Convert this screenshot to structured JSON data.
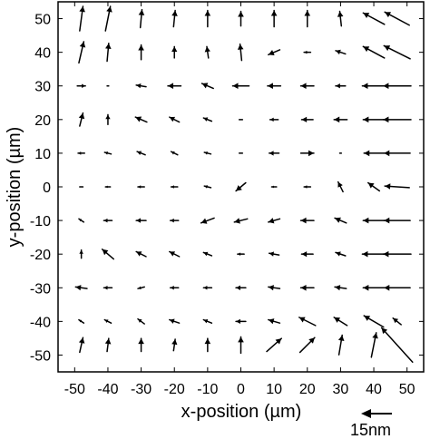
{
  "chart_data": {
    "type": "quiver",
    "xlabel": "x-position (µm)",
    "ylabel": "y-position (µm)",
    "xlim": [
      -55,
      55
    ],
    "ylim": [
      -55,
      55
    ],
    "xticks": [
      -50,
      -40,
      -30,
      -20,
      -10,
      0,
      10,
      20,
      30,
      40,
      50
    ],
    "yticks": [
      50,
      40,
      30,
      20,
      10,
      0,
      -10,
      -20,
      -30,
      -40,
      -50
    ],
    "grid": false,
    "scale_bar": {
      "label": "15nm",
      "magnitude_nm": 15,
      "direction": "left"
    },
    "vectors": [
      {
        "x": -48,
        "y": 50,
        "u": 0.4,
        "v": 3.0
      },
      {
        "x": -40,
        "y": 50,
        "u": 0.6,
        "v": 3.0
      },
      {
        "x": -30,
        "y": 50,
        "u": 0.2,
        "v": 2.2
      },
      {
        "x": -20,
        "y": 50,
        "u": 0.2,
        "v": 2.0
      },
      {
        "x": -10,
        "y": 50,
        "u": 0.0,
        "v": 2.0
      },
      {
        "x": 0,
        "y": 50,
        "u": 0.0,
        "v": 1.8
      },
      {
        "x": 10,
        "y": 50,
        "u": 0.0,
        "v": 2.0
      },
      {
        "x": 20,
        "y": 50,
        "u": 0.0,
        "v": 2.0
      },
      {
        "x": 30,
        "y": 50,
        "u": -0.2,
        "v": 1.8
      },
      {
        "x": 40,
        "y": 50,
        "u": -2.6,
        "v": 1.4
      },
      {
        "x": 47,
        "y": 50,
        "u": -3.0,
        "v": 1.6
      },
      {
        "x": -48,
        "y": 40,
        "u": 0.6,
        "v": 2.6
      },
      {
        "x": -40,
        "y": 40,
        "u": 0.2,
        "v": 2.2
      },
      {
        "x": -30,
        "y": 40,
        "u": 0.0,
        "v": 1.8
      },
      {
        "x": -20,
        "y": 40,
        "u": 0.0,
        "v": 1.4
      },
      {
        "x": -10,
        "y": 40,
        "u": -0.2,
        "v": 1.4
      },
      {
        "x": 0,
        "y": 40,
        "u": -0.2,
        "v": 2.0
      },
      {
        "x": 10,
        "y": 40,
        "u": -1.4,
        "v": -0.6
      },
      {
        "x": 20,
        "y": 40,
        "u": -0.8,
        "v": 0.0
      },
      {
        "x": 30,
        "y": 40,
        "u": -1.2,
        "v": 0.4
      },
      {
        "x": 40,
        "y": 40,
        "u": -2.6,
        "v": 1.4
      },
      {
        "x": 47,
        "y": 40,
        "u": -3.2,
        "v": 1.6
      },
      {
        "x": -48,
        "y": 30,
        "u": 1.0,
        "v": 0.0
      },
      {
        "x": -40,
        "y": 30,
        "u": -0.2,
        "v": 0.0
      },
      {
        "x": -30,
        "y": 30,
        "u": -1.2,
        "v": 0.2
      },
      {
        "x": -20,
        "y": 30,
        "u": -1.6,
        "v": 0.0
      },
      {
        "x": -10,
        "y": 30,
        "u": -1.4,
        "v": 0.6
      },
      {
        "x": 0,
        "y": 30,
        "u": -2.0,
        "v": 0.0
      },
      {
        "x": 10,
        "y": 30,
        "u": -1.6,
        "v": 0.0
      },
      {
        "x": 20,
        "y": 30,
        "u": -1.6,
        "v": 0.0
      },
      {
        "x": 30,
        "y": 30,
        "u": -1.2,
        "v": 0.0
      },
      {
        "x": 40,
        "y": 30,
        "u": -2.8,
        "v": 0.0
      },
      {
        "x": 47,
        "y": 30,
        "u": -3.4,
        "v": 0.0
      },
      {
        "x": -48,
        "y": 20,
        "u": 0.4,
        "v": 1.6
      },
      {
        "x": -40,
        "y": 20,
        "u": 0.0,
        "v": 1.2
      },
      {
        "x": -30,
        "y": 20,
        "u": -1.4,
        "v": 0.6
      },
      {
        "x": -20,
        "y": 20,
        "u": -1.2,
        "v": 0.6
      },
      {
        "x": -10,
        "y": 20,
        "u": -1.0,
        "v": 0.4
      },
      {
        "x": 0,
        "y": 20,
        "u": -0.4,
        "v": 0.0
      },
      {
        "x": 10,
        "y": 20,
        "u": -1.0,
        "v": 0.0
      },
      {
        "x": 20,
        "y": 20,
        "u": -1.4,
        "v": 0.0
      },
      {
        "x": 30,
        "y": 20,
        "u": -1.6,
        "v": 0.0
      },
      {
        "x": 40,
        "y": 20,
        "u": -2.6,
        "v": 0.0
      },
      {
        "x": 47,
        "y": 20,
        "u": -3.4,
        "v": 0.0
      },
      {
        "x": -48,
        "y": 10,
        "u": -0.8,
        "v": 0.0
      },
      {
        "x": -40,
        "y": 10,
        "u": -0.8,
        "v": 0.2
      },
      {
        "x": -30,
        "y": 10,
        "u": -1.0,
        "v": 0.4
      },
      {
        "x": -20,
        "y": 10,
        "u": -0.8,
        "v": 0.4
      },
      {
        "x": -10,
        "y": 10,
        "u": -0.8,
        "v": 0.2
      },
      {
        "x": 0,
        "y": 10,
        "u": -0.4,
        "v": 0.0
      },
      {
        "x": 10,
        "y": 10,
        "u": -1.2,
        "v": 0.0
      },
      {
        "x": 20,
        "y": 10,
        "u": 1.6,
        "v": 0.0
      },
      {
        "x": 30,
        "y": 10,
        "u": -0.2,
        "v": 0.0
      },
      {
        "x": 40,
        "y": 10,
        "u": -2.4,
        "v": 0.0
      },
      {
        "x": 47,
        "y": 10,
        "u": -3.2,
        "v": 0.0
      },
      {
        "x": -48,
        "y": 0,
        "u": -0.4,
        "v": 0.0
      },
      {
        "x": -40,
        "y": 0,
        "u": -0.6,
        "v": 0.0
      },
      {
        "x": -30,
        "y": 0,
        "u": -0.8,
        "v": 0.0
      },
      {
        "x": -20,
        "y": 0,
        "u": -0.8,
        "v": 0.0
      },
      {
        "x": -10,
        "y": 0,
        "u": -0.8,
        "v": 0.2
      },
      {
        "x": 0,
        "y": 0,
        "u": -1.2,
        "v": -1.0
      },
      {
        "x": 10,
        "y": 0,
        "u": -0.6,
        "v": 0.0
      },
      {
        "x": 20,
        "y": 0,
        "u": -0.8,
        "v": 0.0
      },
      {
        "x": 30,
        "y": 0,
        "u": -0.6,
        "v": 1.2
      },
      {
        "x": 40,
        "y": 0,
        "u": -1.4,
        "v": 1.0
      },
      {
        "x": 47,
        "y": 0,
        "u": -3.0,
        "v": 0.2
      },
      {
        "x": -48,
        "y": -10,
        "u": -0.6,
        "v": 0.4
      },
      {
        "x": -40,
        "y": -10,
        "u": -1.0,
        "v": 0.0
      },
      {
        "x": -30,
        "y": -10,
        "u": -1.2,
        "v": 0.0
      },
      {
        "x": -20,
        "y": -10,
        "u": -1.0,
        "v": 0.0
      },
      {
        "x": -10,
        "y": -10,
        "u": -1.6,
        "v": -0.6
      },
      {
        "x": 0,
        "y": -10,
        "u": -1.6,
        "v": -0.4
      },
      {
        "x": 10,
        "y": -10,
        "u": -1.4,
        "v": -0.4
      },
      {
        "x": 20,
        "y": -10,
        "u": -1.6,
        "v": 0.0
      },
      {
        "x": 30,
        "y": -10,
        "u": -1.4,
        "v": 0.6
      },
      {
        "x": 40,
        "y": -10,
        "u": -2.6,
        "v": 0.0
      },
      {
        "x": 47,
        "y": -10,
        "u": -3.2,
        "v": 0.0
      },
      {
        "x": -48,
        "y": -20,
        "u": 0.0,
        "v": 1.0
      },
      {
        "x": -40,
        "y": -20,
        "u": -1.4,
        "v": 1.2
      },
      {
        "x": -30,
        "y": -20,
        "u": -1.2,
        "v": 0.6
      },
      {
        "x": -20,
        "y": -20,
        "u": -1.2,
        "v": 0.6
      },
      {
        "x": -10,
        "y": -20,
        "u": -1.0,
        "v": 0.4
      },
      {
        "x": 0,
        "y": -20,
        "u": -0.8,
        "v": 0.0
      },
      {
        "x": 10,
        "y": -20,
        "u": -1.2,
        "v": 0.2
      },
      {
        "x": 20,
        "y": -20,
        "u": -1.4,
        "v": 0.0
      },
      {
        "x": 30,
        "y": -20,
        "u": -1.2,
        "v": 0.4
      },
      {
        "x": 40,
        "y": -20,
        "u": -2.8,
        "v": 0.0
      },
      {
        "x": 47,
        "y": -20,
        "u": -3.4,
        "v": 0.0
      },
      {
        "x": -48,
        "y": -30,
        "u": -1.4,
        "v": 0.2
      },
      {
        "x": -40,
        "y": -30,
        "u": -1.0,
        "v": 0.0
      },
      {
        "x": -30,
        "y": -30,
        "u": -0.8,
        "v": -0.2
      },
      {
        "x": -20,
        "y": -30,
        "u": -1.0,
        "v": 0.0
      },
      {
        "x": -10,
        "y": -30,
        "u": -1.0,
        "v": 0.0
      },
      {
        "x": 0,
        "y": -30,
        "u": -1.2,
        "v": 0.0
      },
      {
        "x": 10,
        "y": -30,
        "u": -1.4,
        "v": 0.2
      },
      {
        "x": 20,
        "y": -30,
        "u": -1.6,
        "v": 0.0
      },
      {
        "x": 30,
        "y": -30,
        "u": -1.4,
        "v": 0.2
      },
      {
        "x": 40,
        "y": -30,
        "u": -2.6,
        "v": 0.0
      },
      {
        "x": 47,
        "y": -30,
        "u": -3.2,
        "v": 0.0
      },
      {
        "x": -48,
        "y": -40,
        "u": -0.6,
        "v": 0.4
      },
      {
        "x": -40,
        "y": -40,
        "u": -0.8,
        "v": 0.4
      },
      {
        "x": -30,
        "y": -40,
        "u": -0.8,
        "v": 0.6
      },
      {
        "x": -20,
        "y": -40,
        "u": -1.2,
        "v": 0.4
      },
      {
        "x": -10,
        "y": -40,
        "u": -1.0,
        "v": 0.4
      },
      {
        "x": 0,
        "y": -40,
        "u": -1.2,
        "v": 0.0
      },
      {
        "x": 10,
        "y": -40,
        "u": -1.4,
        "v": 0.4
      },
      {
        "x": 20,
        "y": -40,
        "u": -2.0,
        "v": 1.0
      },
      {
        "x": 30,
        "y": -40,
        "u": -1.6,
        "v": 1.0
      },
      {
        "x": 40,
        "y": -40,
        "u": -2.4,
        "v": 1.4
      },
      {
        "x": 47,
        "y": -40,
        "u": -1.0,
        "v": 0.8
      },
      {
        "x": -48,
        "y": -47,
        "u": 0.4,
        "v": 1.8
      },
      {
        "x": -40,
        "y": -47,
        "u": 0.2,
        "v": 1.6
      },
      {
        "x": -30,
        "y": -47,
        "u": 0.0,
        "v": 1.6
      },
      {
        "x": -20,
        "y": -47,
        "u": 0.2,
        "v": 1.4
      },
      {
        "x": -10,
        "y": -47,
        "u": 0.0,
        "v": 1.6
      },
      {
        "x": 0,
        "y": -47,
        "u": 0.0,
        "v": 2.0
      },
      {
        "x": 10,
        "y": -47,
        "u": 1.8,
        "v": 1.6
      },
      {
        "x": 20,
        "y": -47,
        "u": 1.8,
        "v": 1.8
      },
      {
        "x": 30,
        "y": -47,
        "u": 0.4,
        "v": 2.4
      },
      {
        "x": 40,
        "y": -47,
        "u": 0.6,
        "v": 3.0
      },
      {
        "x": 47,
        "y": -47,
        "u": -3.8,
        "v": 4.2
      }
    ]
  }
}
